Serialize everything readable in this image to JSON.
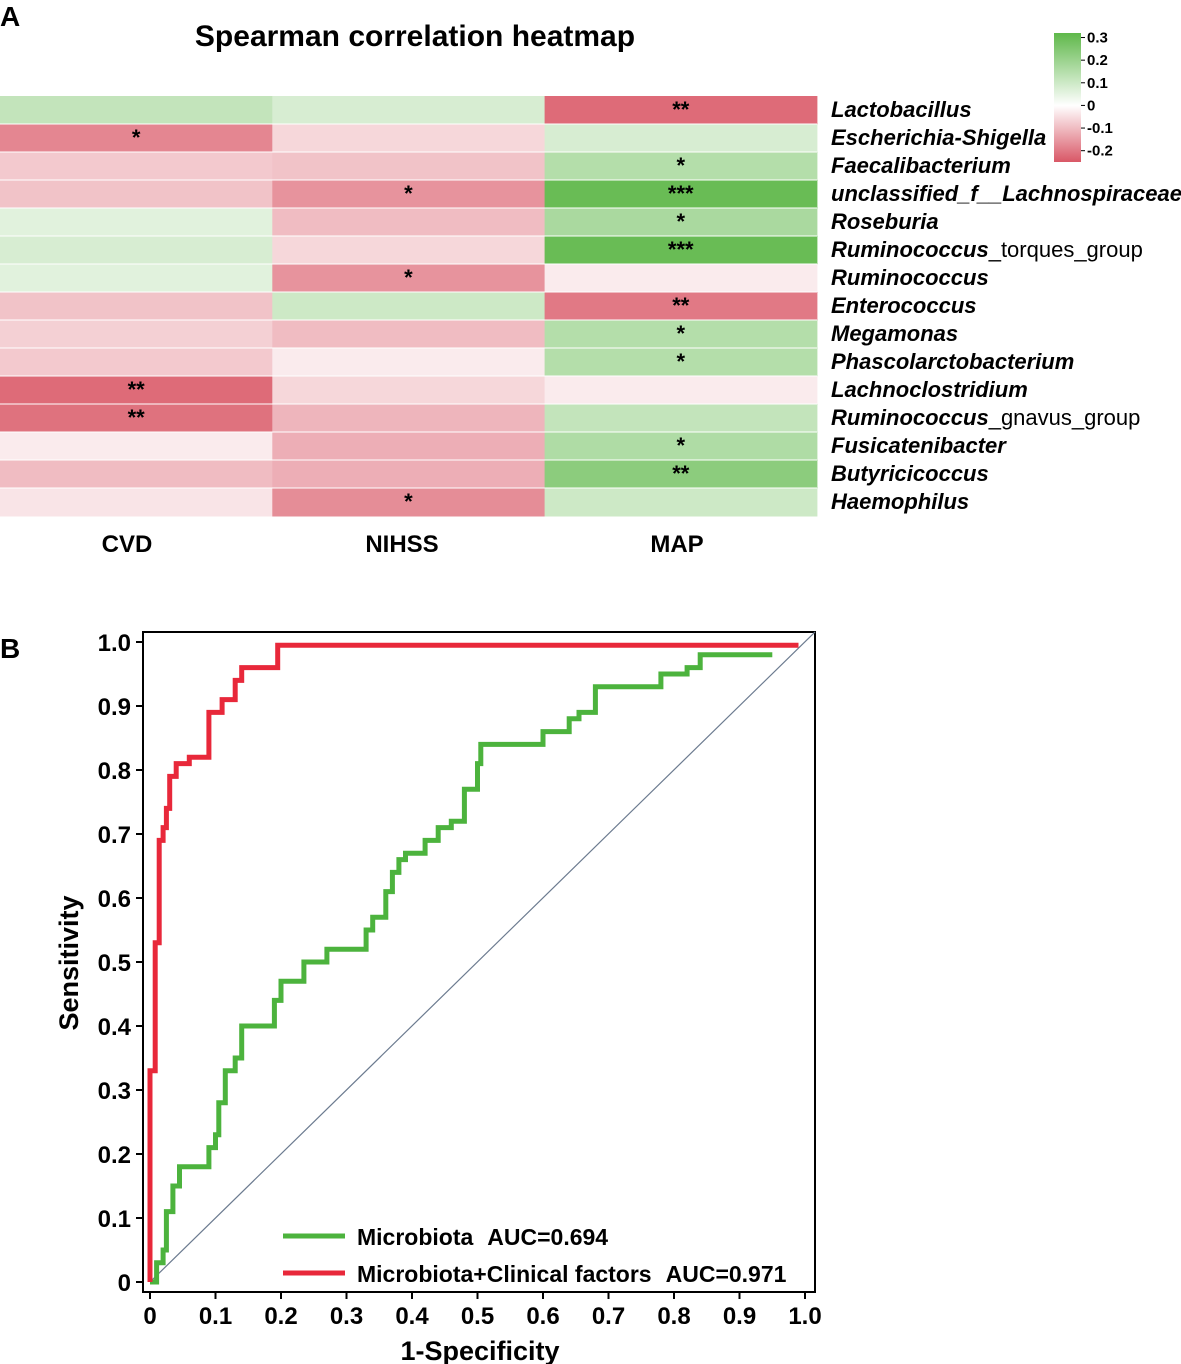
{
  "chart_data": [
    {
      "type": "heatmap",
      "panel_label": "A",
      "title": "Spearman correlation heatmap",
      "columns": [
        "CVD",
        "NIHSS",
        "MAP"
      ],
      "rows": [
        {
          "label": "Lactobacillus",
          "label_suffix": "",
          "values": [
            0.12,
            0.08,
            -0.22
          ],
          "stars": [
            "",
            "",
            "**"
          ]
        },
        {
          "label": "Escherichia-Shigella",
          "label_suffix": "",
          "values": [
            -0.18,
            -0.06,
            0.08
          ],
          "stars": [
            "*",
            "",
            ""
          ]
        },
        {
          "label": "Faecalibacterium",
          "label_suffix": "",
          "values": [
            -0.08,
            -0.09,
            0.15
          ],
          "stars": [
            "",
            "",
            "*"
          ]
        },
        {
          "label": "unclassified_f__Lachnospiraceae",
          "label_suffix": "",
          "values": [
            -0.09,
            -0.16,
            0.3
          ],
          "stars": [
            "",
            "*",
            "***"
          ]
        },
        {
          "label": "Roseburia",
          "label_suffix": "",
          "values": [
            0.06,
            -0.1,
            0.17
          ],
          "stars": [
            "",
            "",
            "*"
          ]
        },
        {
          "label": "Ruminococcus",
          "label_suffix": "_torques_group",
          "values": [
            0.08,
            -0.06,
            0.3
          ],
          "stars": [
            "",
            "",
            "***"
          ]
        },
        {
          "label": "Ruminococcus",
          "label_suffix": "",
          "values": [
            0.06,
            -0.16,
            -0.03
          ],
          "stars": [
            "",
            "*",
            ""
          ]
        },
        {
          "label": "Enterococcus",
          "label_suffix": "",
          "values": [
            -0.09,
            0.1,
            -0.2
          ],
          "stars": [
            "",
            "",
            "**"
          ]
        },
        {
          "label": "Megamonas",
          "label_suffix": "",
          "values": [
            -0.07,
            -0.1,
            0.15
          ],
          "stars": [
            "",
            "",
            "*"
          ]
        },
        {
          "label": "Phascolarctobacterium",
          "label_suffix": "",
          "values": [
            -0.08,
            -0.03,
            0.15
          ],
          "stars": [
            "",
            "",
            "*"
          ]
        },
        {
          "label": "Lachnoclostridium",
          "label_suffix": "",
          "values": [
            -0.22,
            -0.06,
            -0.03
          ],
          "stars": [
            "**",
            "",
            ""
          ]
        },
        {
          "label": "Ruminococcus",
          "label_suffix": "_gnavus_group",
          "values": [
            -0.21,
            -0.11,
            0.12
          ],
          "stars": [
            "**",
            "",
            ""
          ]
        },
        {
          "label": "Fusicatenibacter",
          "label_suffix": "",
          "values": [
            -0.03,
            -0.12,
            0.16
          ],
          "stars": [
            "",
            "",
            "*"
          ]
        },
        {
          "label": "Butyricicoccus",
          "label_suffix": "",
          "values": [
            -0.1,
            -0.12,
            0.23
          ],
          "stars": [
            "",
            "",
            "**"
          ]
        },
        {
          "label": "Haemophilus",
          "label_suffix": "",
          "values": [
            -0.04,
            -0.17,
            0.1
          ],
          "stars": [
            "",
            "*",
            ""
          ]
        }
      ],
      "colorbar": {
        "ticks": [
          "0.3",
          "0.2",
          "0.1",
          "0",
          "-0.1",
          "-0.2"
        ],
        "range": [
          -0.25,
          0.32
        ],
        "positive_color": "#5fb84a",
        "negative_color": "#d95766",
        "neutral_color": "#ffffff"
      }
    },
    {
      "type": "line",
      "panel_label": "B",
      "title": "",
      "xlabel": "1-Specificity",
      "ylabel": "Sensitivity",
      "xlim": [
        0,
        1
      ],
      "ylim": [
        0,
        1
      ],
      "xticks": [
        "0",
        "0.1",
        "0.2",
        "0.3",
        "0.4",
        "0.5",
        "0.6",
        "0.7",
        "0.8",
        "0.9",
        "1.0"
      ],
      "yticks": [
        "0",
        "0.1",
        "0.2",
        "0.3",
        "0.4",
        "0.5",
        "0.6",
        "0.7",
        "0.8",
        "0.9",
        "1.0"
      ],
      "diagonal_color": "#6b7a8f",
      "series": [
        {
          "name": "Microbiota",
          "auc_label": "AUC=0.694",
          "color": "#4cb33d",
          "points": [
            [
              0,
              0
            ],
            [
              0.01,
              0
            ],
            [
              0.01,
              0.03
            ],
            [
              0.02,
              0.03
            ],
            [
              0.02,
              0.05
            ],
            [
              0.025,
              0.05
            ],
            [
              0.025,
              0.11
            ],
            [
              0.035,
              0.11
            ],
            [
              0.035,
              0.15
            ],
            [
              0.045,
              0.15
            ],
            [
              0.045,
              0.18
            ],
            [
              0.09,
              0.18
            ],
            [
              0.09,
              0.21
            ],
            [
              0.1,
              0.21
            ],
            [
              0.1,
              0.23
            ],
            [
              0.105,
              0.23
            ],
            [
              0.105,
              0.28
            ],
            [
              0.115,
              0.28
            ],
            [
              0.115,
              0.33
            ],
            [
              0.13,
              0.33
            ],
            [
              0.13,
              0.35
            ],
            [
              0.14,
              0.35
            ],
            [
              0.14,
              0.4
            ],
            [
              0.19,
              0.4
            ],
            [
              0.19,
              0.44
            ],
            [
              0.2,
              0.44
            ],
            [
              0.2,
              0.47
            ],
            [
              0.235,
              0.47
            ],
            [
              0.235,
              0.5
            ],
            [
              0.27,
              0.5
            ],
            [
              0.27,
              0.52
            ],
            [
              0.33,
              0.52
            ],
            [
              0.33,
              0.55
            ],
            [
              0.34,
              0.55
            ],
            [
              0.34,
              0.57
            ],
            [
              0.36,
              0.57
            ],
            [
              0.36,
              0.61
            ],
            [
              0.37,
              0.61
            ],
            [
              0.37,
              0.64
            ],
            [
              0.38,
              0.64
            ],
            [
              0.38,
              0.66
            ],
            [
              0.39,
              0.66
            ],
            [
              0.39,
              0.67
            ],
            [
              0.42,
              0.67
            ],
            [
              0.42,
              0.69
            ],
            [
              0.44,
              0.69
            ],
            [
              0.44,
              0.71
            ],
            [
              0.46,
              0.71
            ],
            [
              0.46,
              0.72
            ],
            [
              0.48,
              0.72
            ],
            [
              0.48,
              0.77
            ],
            [
              0.5,
              0.77
            ],
            [
              0.5,
              0.81
            ],
            [
              0.505,
              0.81
            ],
            [
              0.505,
              0.84
            ],
            [
              0.6,
              0.84
            ],
            [
              0.6,
              0.86
            ],
            [
              0.64,
              0.86
            ],
            [
              0.64,
              0.88
            ],
            [
              0.655,
              0.88
            ],
            [
              0.655,
              0.89
            ],
            [
              0.68,
              0.89
            ],
            [
              0.68,
              0.93
            ],
            [
              0.78,
              0.93
            ],
            [
              0.78,
              0.95
            ],
            [
              0.82,
              0.95
            ],
            [
              0.82,
              0.96
            ],
            [
              0.84,
              0.96
            ],
            [
              0.84,
              0.98
            ],
            [
              0.95,
              0.98
            ]
          ]
        },
        {
          "name": "Microbiota+Clinical factors",
          "auc_label": "AUC=0.971",
          "color": "#e8283a",
          "points": [
            [
              0,
              0
            ],
            [
              0,
              0.33
            ],
            [
              0.008,
              0.33
            ],
            [
              0.008,
              0.53
            ],
            [
              0.014,
              0.53
            ],
            [
              0.014,
              0.69
            ],
            [
              0.02,
              0.69
            ],
            [
              0.02,
              0.71
            ],
            [
              0.025,
              0.71
            ],
            [
              0.025,
              0.74
            ],
            [
              0.03,
              0.74
            ],
            [
              0.03,
              0.79
            ],
            [
              0.04,
              0.79
            ],
            [
              0.04,
              0.81
            ],
            [
              0.06,
              0.81
            ],
            [
              0.06,
              0.82
            ],
            [
              0.09,
              0.82
            ],
            [
              0.09,
              0.89
            ],
            [
              0.11,
              0.89
            ],
            [
              0.11,
              0.91
            ],
            [
              0.13,
              0.91
            ],
            [
              0.13,
              0.94
            ],
            [
              0.14,
              0.94
            ],
            [
              0.14,
              0.96
            ],
            [
              0.195,
              0.96
            ],
            [
              0.195,
              0.995
            ],
            [
              0.99,
              0.995
            ]
          ]
        }
      ]
    }
  ]
}
